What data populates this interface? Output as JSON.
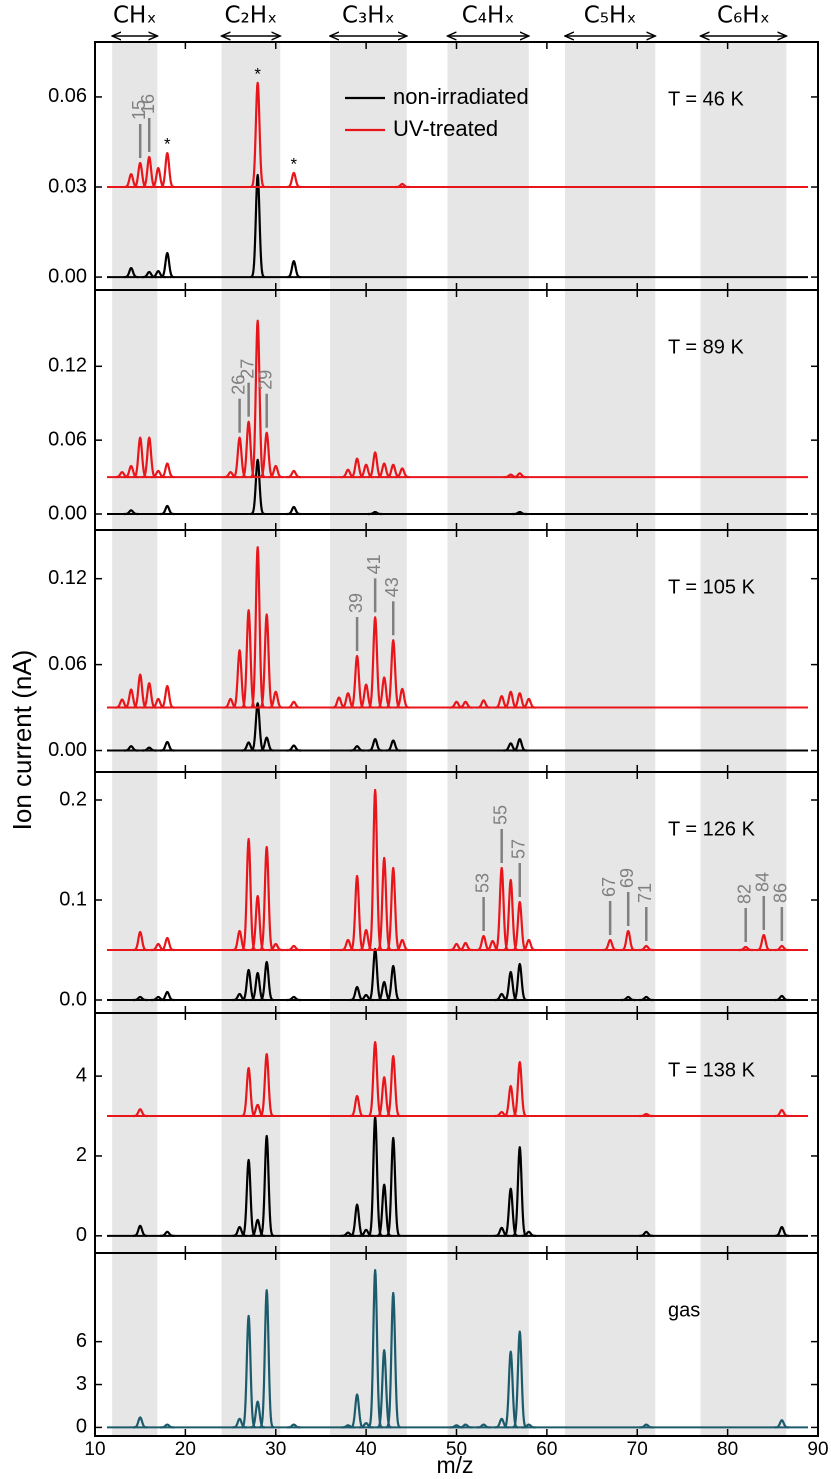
{
  "axis_labels": {
    "y": "Ion current (nA)",
    "x": "m/z"
  },
  "groups": [
    {
      "label": "CHₓ",
      "range": [
        11.9,
        16.9
      ]
    },
    {
      "label": "C₂Hₓ",
      "range": [
        24,
        30.5
      ]
    },
    {
      "label": "C₃Hₓ",
      "range": [
        36,
        44.5
      ]
    },
    {
      "label": "C₄Hₓ",
      "range": [
        49,
        58
      ]
    },
    {
      "label": "C₅Hₓ",
      "range": [
        62,
        72
      ]
    },
    {
      "label": "C₆Hₓ",
      "range": [
        77,
        86.5
      ]
    }
  ],
  "chart_data": [
    {
      "type": "line",
      "label": "T = 46 K",
      "legend": true,
      "xlim": [
        10,
        90
      ],
      "xticks": [
        10,
        20,
        30,
        40,
        50,
        60,
        70,
        80,
        90
      ],
      "ylim": [
        -0.0043,
        0.0783
      ],
      "yticks": [
        {
          "value": 0,
          "label": "0.00"
        },
        {
          "value": 0.03,
          "label": "0.03"
        },
        {
          "value": 0.06,
          "label": "0.06"
        }
      ],
      "series": [
        {
          "name": "non-irradiated",
          "color": "#000000",
          "baseline": 0,
          "x": [
            14,
            16,
            17,
            18,
            28,
            32
          ],
          "values": [
            0.003,
            0.0017,
            0.002,
            0.008,
            0.034,
            0.0053
          ]
        },
        {
          "name": "UV-treated",
          "color": "#e8161b",
          "baseline": 0.03,
          "x": [
            14,
            15,
            16,
            17,
            18,
            28,
            32,
            44
          ],
          "values": [
            0.0343,
            0.038,
            0.04,
            0.0363,
            0.0413,
            0.0647,
            0.0347,
            0.031
          ]
        }
      ],
      "peak_labels": [
        15,
        16
      ],
      "asterisks": {
        "marker": "*",
        "x": [
          18,
          28,
          32
        ]
      }
    },
    {
      "type": "line",
      "label": "T = 89 K",
      "xlim": [
        10,
        90
      ],
      "xticks": [
        10,
        20,
        30,
        40,
        50,
        60,
        70,
        80,
        90
      ],
      "ylim": [
        -0.013,
        0.182
      ],
      "yticks": [
        {
          "value": 0,
          "label": "0.00"
        },
        {
          "value": 0.06,
          "label": "0.06"
        },
        {
          "value": 0.12,
          "label": "0.12"
        }
      ],
      "series": [
        {
          "color": "#000000",
          "baseline": 0,
          "x": [
            14,
            18,
            28,
            32,
            41,
            57
          ],
          "values": [
            0.003,
            0.0065,
            0.044,
            0.0057,
            0.0016,
            0.0016
          ]
        },
        {
          "color": "#e8161b",
          "baseline": 0.03,
          "x": [
            13,
            14,
            15,
            16,
            17,
            18,
            25,
            26,
            27,
            28,
            29,
            30,
            32,
            38,
            39,
            40,
            41,
            42,
            43,
            44,
            56,
            57
          ],
          "values": [
            0.034,
            0.039,
            0.062,
            0.062,
            0.035,
            0.041,
            0.034,
            0.062,
            0.075,
            0.157,
            0.066,
            0.039,
            0.035,
            0.036,
            0.045,
            0.04,
            0.05,
            0.041,
            0.04,
            0.037,
            0.032,
            0.033
          ]
        }
      ],
      "peak_labels": [
        26,
        27,
        29
      ]
    },
    {
      "type": "line",
      "label": "T = 105 K",
      "xlim": [
        10,
        90
      ],
      "xticks": [
        10,
        20,
        30,
        40,
        50,
        60,
        70,
        80,
        90
      ],
      "ylim": [
        -0.015,
        0.154
      ],
      "yticks": [
        {
          "value": 0,
          "label": "0.00"
        },
        {
          "value": 0.06,
          "label": "0.06"
        },
        {
          "value": 0.12,
          "label": "0.12"
        }
      ],
      "series": [
        {
          "color": "#000000",
          "baseline": 0,
          "x": [
            14,
            16,
            18,
            27,
            28,
            29,
            32,
            39,
            41,
            43,
            56,
            57
          ],
          "values": [
            0.003,
            0.002,
            0.006,
            0.0056,
            0.033,
            0.009,
            0.0035,
            0.003,
            0.008,
            0.007,
            0.005,
            0.008
          ]
        },
        {
          "color": "#e8161b",
          "baseline": 0.03,
          "x": [
            13,
            14,
            15,
            16,
            17,
            18,
            25,
            26,
            27,
            28,
            29,
            30,
            32,
            37,
            38,
            39,
            40,
            41,
            42,
            43,
            44,
            50,
            51,
            53,
            55,
            56,
            57,
            58
          ],
          "values": [
            0.0356,
            0.0426,
            0.053,
            0.047,
            0.036,
            0.045,
            0.036,
            0.07,
            0.098,
            0.142,
            0.095,
            0.041,
            0.034,
            0.037,
            0.04,
            0.066,
            0.046,
            0.093,
            0.051,
            0.077,
            0.043,
            0.034,
            0.034,
            0.035,
            0.038,
            0.041,
            0.04,
            0.036
          ]
        }
      ],
      "peak_labels": [
        39,
        41,
        43
      ]
    },
    {
      "type": "line",
      "label": "T = 126 K",
      "xlim": [
        10,
        90
      ],
      "xticks": [
        10,
        20,
        30,
        40,
        50,
        60,
        70,
        80,
        90
      ],
      "ylim": [
        -0.013,
        0.228
      ],
      "yticks": [
        {
          "value": 0,
          "label": "0.0"
        },
        {
          "value": 0.1,
          "label": "0.1"
        },
        {
          "value": 0.2,
          "label": "0.2"
        }
      ],
      "series": [
        {
          "color": "#000000",
          "baseline": 0,
          "x": [
            15,
            17,
            18,
            26,
            27,
            28,
            29,
            32,
            39,
            40,
            41,
            42,
            43,
            55,
            56,
            57,
            69,
            71,
            86
          ],
          "values": [
            0.003,
            0.003,
            0.008,
            0.006,
            0.03,
            0.027,
            0.038,
            0.003,
            0.013,
            0.005,
            0.051,
            0.018,
            0.034,
            0.006,
            0.028,
            0.036,
            0.003,
            0.003,
            0.004
          ]
        },
        {
          "color": "#e8161b",
          "baseline": 0.05,
          "x": [
            15,
            17,
            18,
            26,
            27,
            28,
            29,
            30,
            32,
            38,
            39,
            40,
            41,
            42,
            43,
            44,
            50,
            51,
            53,
            54,
            55,
            56,
            57,
            58,
            67,
            69,
            71,
            82,
            84,
            86
          ],
          "values": [
            0.068,
            0.056,
            0.062,
            0.069,
            0.161,
            0.104,
            0.153,
            0.056,
            0.054,
            0.06,
            0.124,
            0.07,
            0.21,
            0.142,
            0.132,
            0.06,
            0.056,
            0.057,
            0.064,
            0.059,
            0.132,
            0.12,
            0.098,
            0.06,
            0.06,
            0.069,
            0.054,
            0.053,
            0.065,
            0.054
          ]
        }
      ],
      "peak_labels": [
        53,
        55,
        57,
        67,
        69,
        71,
        82,
        84,
        86
      ]
    },
    {
      "type": "line",
      "label": "T = 138 K",
      "xlim": [
        10,
        90
      ],
      "xticks": [
        10,
        20,
        30,
        40,
        50,
        60,
        70,
        80,
        90
      ],
      "ylim": [
        -0.43,
        5.58
      ],
      "yticks": [
        0,
        2,
        4
      ],
      "series": [
        {
          "color": "#000000",
          "baseline": 0,
          "x": [
            15,
            18,
            26,
            27,
            28,
            29,
            38,
            39,
            40,
            41,
            42,
            43,
            55,
            56,
            57,
            58,
            71,
            86
          ],
          "values": [
            0.25,
            0.1,
            0.22,
            1.9,
            0.4,
            2.5,
            0.08,
            0.78,
            0.15,
            2.98,
            1.28,
            2.45,
            0.2,
            1.18,
            2.22,
            0.1,
            0.1,
            0.22
          ]
        },
        {
          "color": "#e8161b",
          "baseline": 3,
          "x": [
            15,
            27,
            28,
            29,
            39,
            41,
            42,
            43,
            55,
            56,
            57,
            71,
            86
          ],
          "values": [
            3.17,
            4.2,
            3.28,
            4.55,
            3.5,
            4.85,
            3.97,
            4.5,
            3.1,
            3.75,
            4.35,
            3.05,
            3.15
          ]
        }
      ]
    },
    {
      "type": "line",
      "label": "gas",
      "show_xtick_labels": true,
      "xlim": [
        10,
        90
      ],
      "xticks": [
        10,
        20,
        30,
        40,
        50,
        60,
        70,
        80,
        90
      ],
      "ylim": [
        -0.6,
        12.2
      ],
      "yticks": [
        0,
        3,
        6
      ],
      "series": [
        {
          "color": "#1c5b6b",
          "baseline": 0,
          "x": [
            15,
            18,
            26,
            27,
            28,
            29,
            32,
            38,
            39,
            40,
            41,
            42,
            43,
            50,
            51,
            53,
            55,
            56,
            57,
            58,
            71,
            86
          ],
          "values": [
            0.7,
            0.2,
            0.6,
            7.8,
            1.8,
            9.6,
            0.2,
            0.15,
            2.3,
            0.3,
            11.0,
            5.4,
            9.4,
            0.15,
            0.2,
            0.2,
            0.6,
            5.3,
            6.7,
            0.2,
            0.2,
            0.5
          ]
        }
      ]
    }
  ]
}
